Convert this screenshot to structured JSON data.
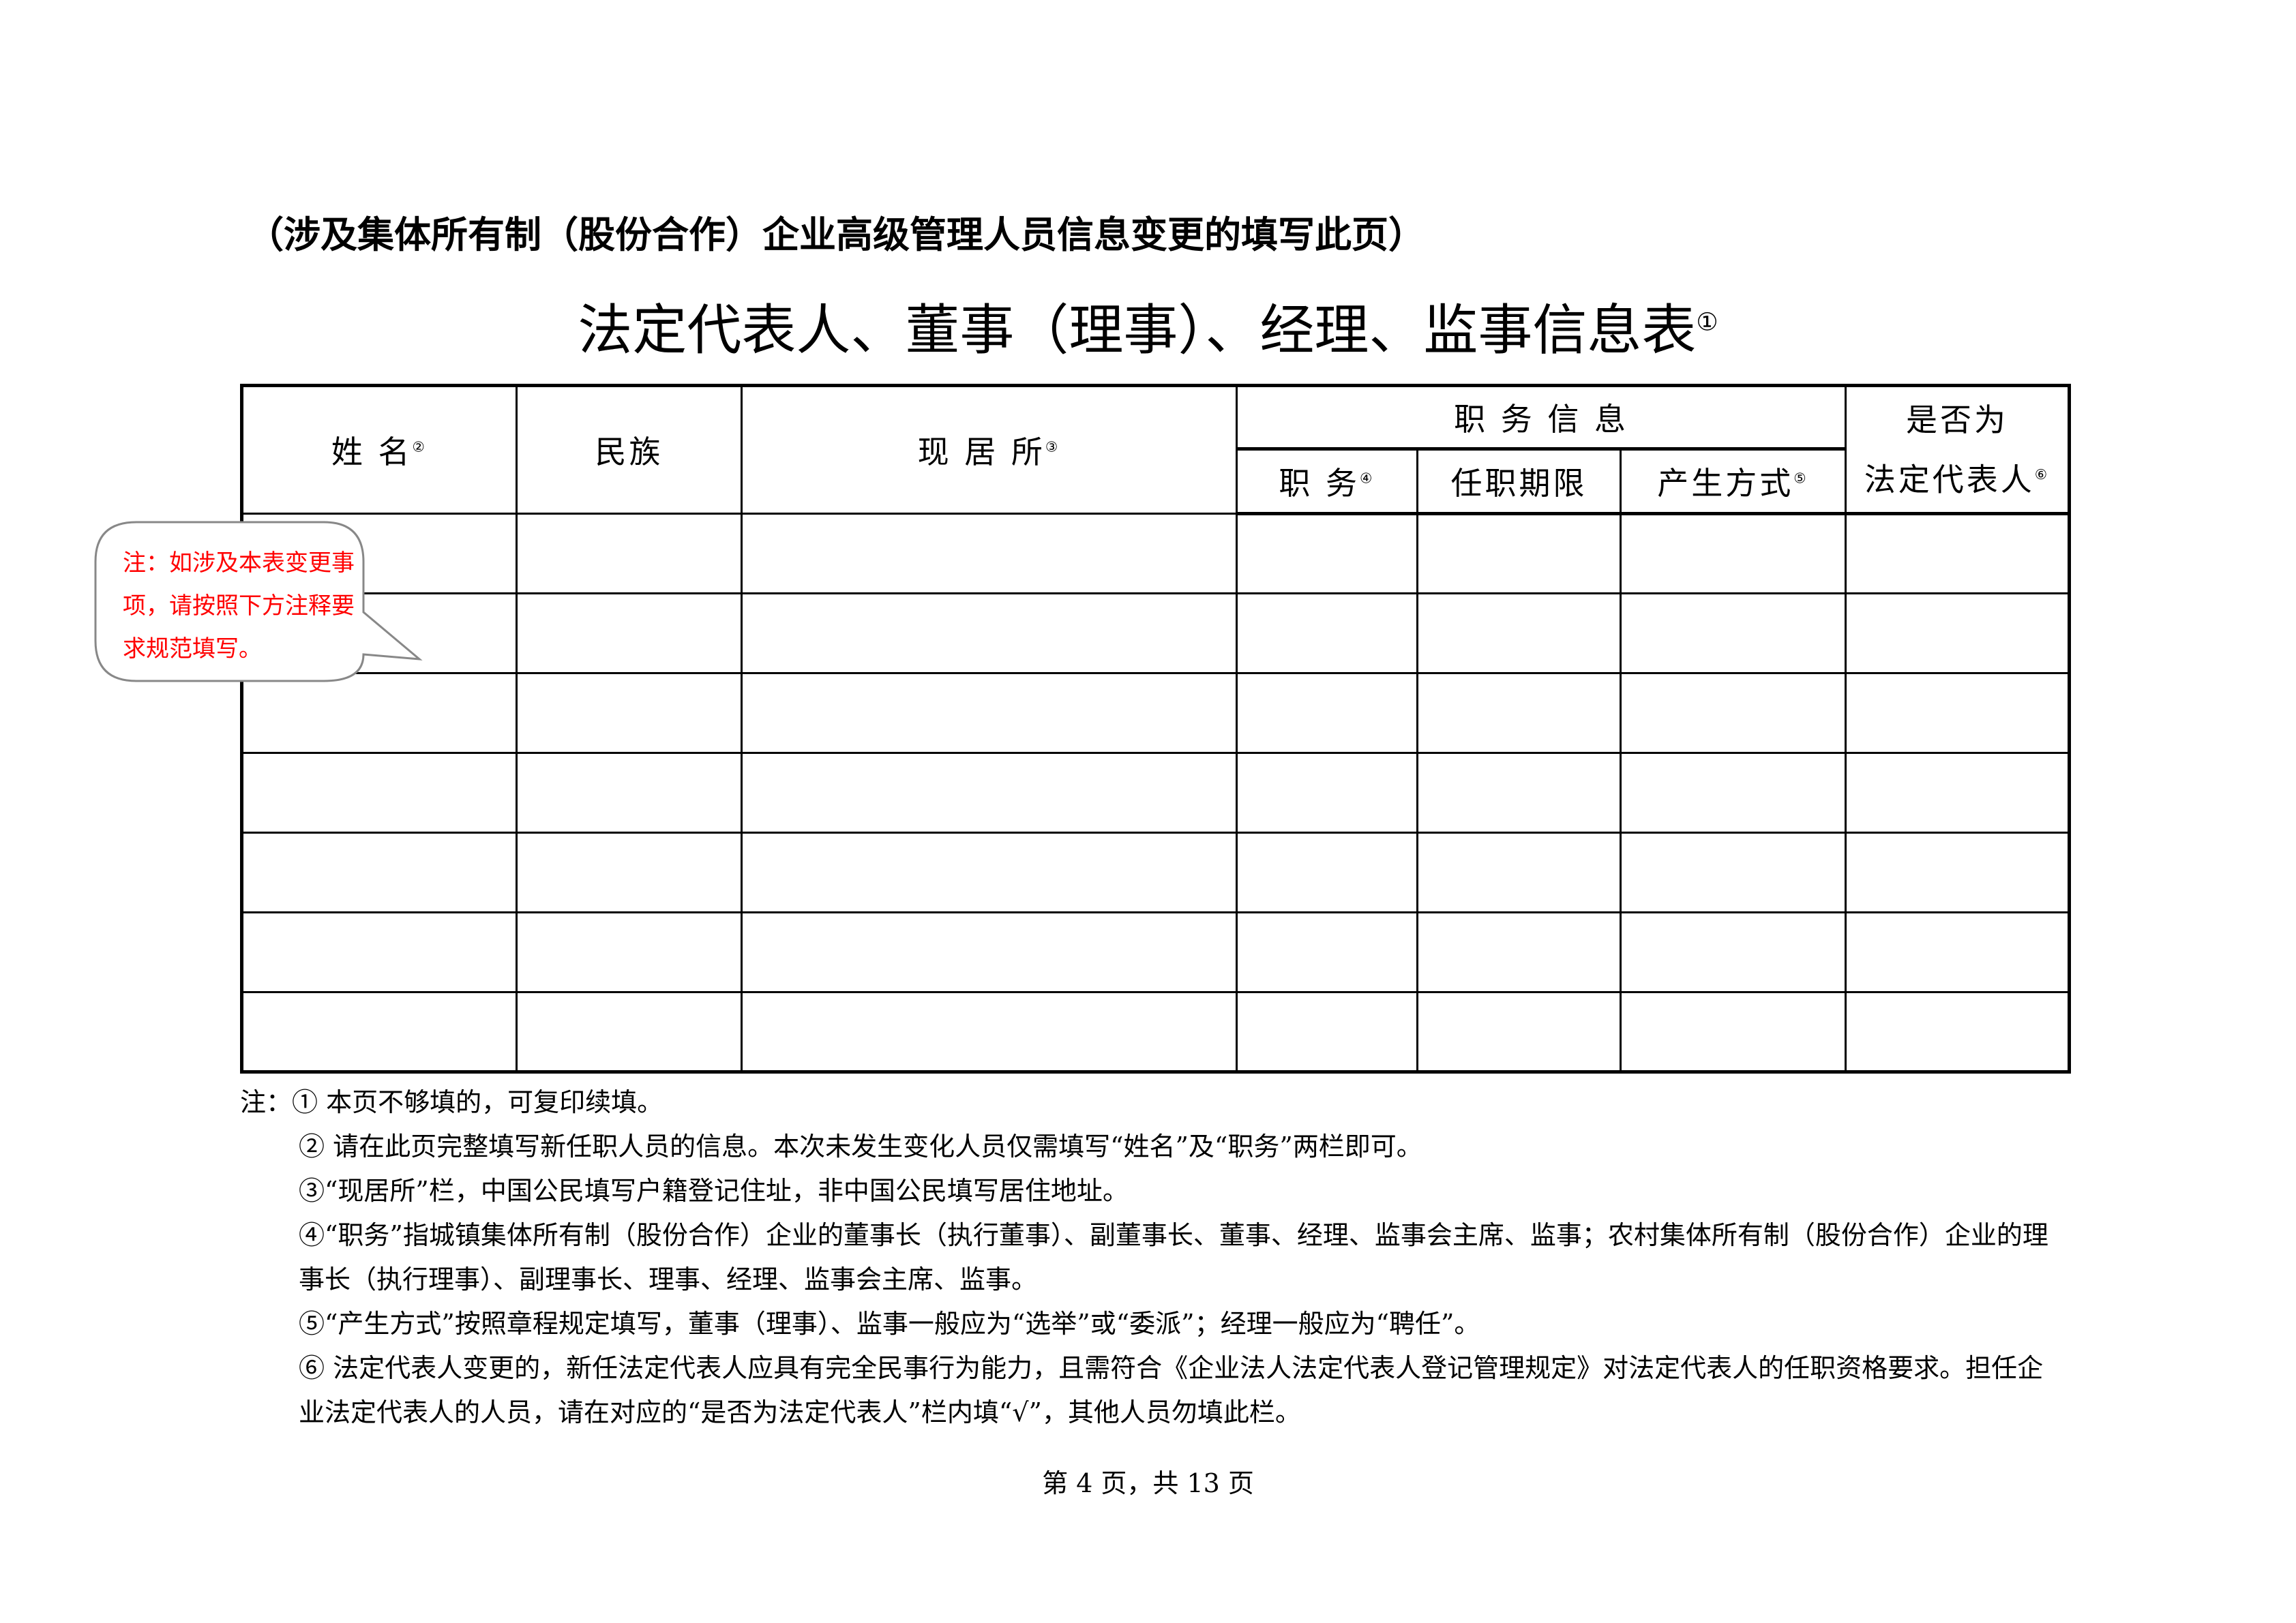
{
  "header": {
    "subtitle": "（涉及集体所有制（股份合作）企业高级管理人员信息变更的填写此页）",
    "title": "法定代表人、董事（理事）、经理、监事信息表",
    "title_mark": "①"
  },
  "table": {
    "columns": {
      "name": {
        "label": "姓  名",
        "mark": "②"
      },
      "ethnicity": {
        "label": "民族"
      },
      "residence": {
        "label": "现  居  所",
        "mark": "③"
      },
      "position_info": {
        "label": "职  务  信  息"
      },
      "position": {
        "label": "职  务",
        "mark": "④"
      },
      "term": {
        "label": "任职期限"
      },
      "method": {
        "label": "产生方式",
        "mark": "⑤"
      },
      "legal_rep_line1": {
        "label": "是否为"
      },
      "legal_rep_line2": {
        "label": "法定代表人",
        "mark": "⑥"
      }
    },
    "rows": [
      [
        "",
        "",
        "",
        "",
        "",
        "",
        ""
      ],
      [
        "",
        "",
        "",
        "",
        "",
        "",
        ""
      ],
      [
        "",
        "",
        "",
        "",
        "",
        "",
        ""
      ],
      [
        "",
        "",
        "",
        "",
        "",
        "",
        ""
      ],
      [
        "",
        "",
        "",
        "",
        "",
        "",
        ""
      ],
      [
        "",
        "",
        "",
        "",
        "",
        "",
        ""
      ],
      [
        "",
        "",
        "",
        "",
        "",
        "",
        ""
      ]
    ]
  },
  "callout": {
    "text": "注：如涉及本表变更事项，请按照下方注释要求规范填写。",
    "color": "#ff0000"
  },
  "notes": {
    "prefix": "注：",
    "items": [
      "① 本页不够填的，可复印续填。",
      "② 请在此页完整填写新任职人员的信息。本次未发生变化人员仅需填写“姓名”及“职务”两栏即可。",
      "③“现居所”栏，中国公民填写户籍登记住址，非中国公民填写居住地址。",
      "④“职务”指城镇集体所有制（股份合作）企业的董事长（执行董事）、副董事长、董事、经理、监事会主席、监事；农村集体所有制（股份合作）企业的理事长（执行理事）、副理事长、理事、经理、监事会主席、监事。",
      "⑤“产生方式”按照章程规定填写，董事（理事）、监事一般应为“选举”或“委派”；经理一般应为“聘任”。",
      "⑥ 法定代表人变更的，新任法定代表人应具有完全民事行为能力，且需符合《企业法人法定代表人登记管理规定》对法定代表人的任职资格要求。担任企业法定代表人的人员，请在对应的“是否为法定代表人”栏内填“√”，其他人员勿填此栏。"
    ]
  },
  "footer": {
    "page": "第 4 页，共 13 页"
  }
}
